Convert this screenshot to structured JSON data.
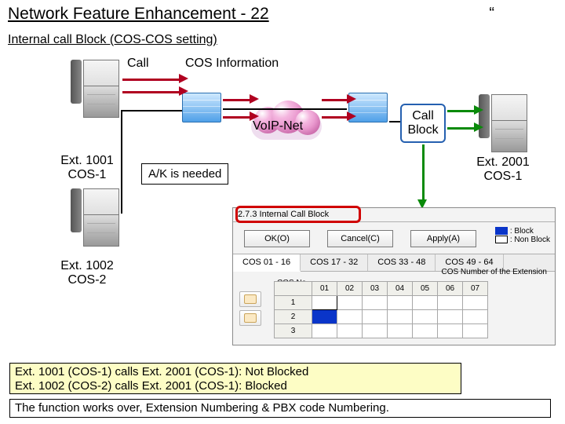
{
  "title": "Network Feature Enhancement - 22",
  "subtitle": "Internal call Block (COS-COS setting)",
  "quote": "“",
  "labels": {
    "call": "Call",
    "cos_info": "COS Information",
    "voip_net": "VoIP-Net",
    "call_block": "Call\nBlock",
    "ext1001": "Ext. 1001\nCOS-1",
    "ext1002": "Ext. 1002\nCOS-2",
    "ext2001": "Ext. 2001\nCOS-1",
    "ak": "A/K is needed"
  },
  "window": {
    "title": "2.7.3 Internal Call Block",
    "buttons": {
      "ok": "OK(O)",
      "cancel": "Cancel(C)",
      "apply": "Apply(A)"
    },
    "legend": {
      "block": ": Block",
      "nonblock": ": Non Block",
      "block_color": "#0a35c9",
      "nonblock_color": "#ffffff"
    },
    "tabs": [
      "COS 01 - 16",
      "COS 17 - 32",
      "COS 33 - 48",
      "COS 49 - 64"
    ],
    "active_tab": 0,
    "grid_corner": "COS No.",
    "grid_caption": "COS Number of the Extension",
    "cols": [
      "01",
      "02",
      "03",
      "04",
      "05",
      "06",
      "07"
    ],
    "rows": [
      "1",
      "2",
      "3"
    ],
    "specials": {
      "r1c1": "white-border",
      "r2c1": "blue"
    }
  },
  "summary": {
    "line1": "Ext. 1001 (COS-1) calls Ext. 2001 (COS-1):  Not Blocked",
    "line2": "Ext. 1002 (COS-2) calls Ext. 2001 (COS-1):  Blocked"
  },
  "footer": "The function works over, Extension Numbering & PBX code Numbering.",
  "colors": {
    "arrow_red": "#b00020",
    "arrow_green": "#0a8a0a"
  }
}
